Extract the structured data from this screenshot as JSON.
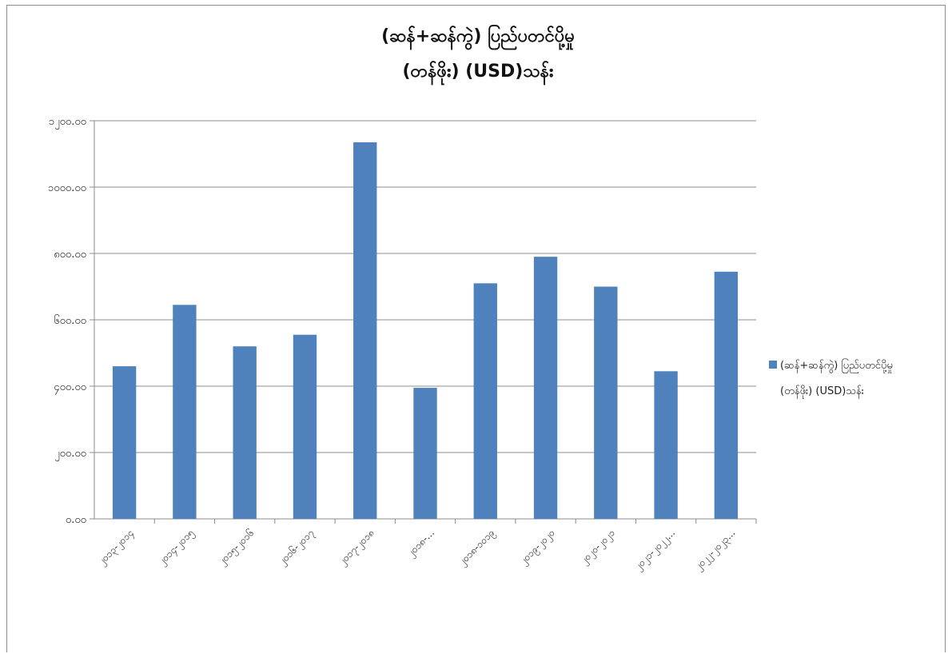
{
  "chart_data": {
    "type": "bar",
    "title_lines": [
      "(ဆန်+ဆန်ကွဲ) ပြည်ပတင်ပို့မှု",
      "(တန်ဖိုး) (USD)သန်း"
    ],
    "categories": [
      "၂၀၁၃-၂၀၁၄",
      "၂၀၁၄-၂၀၁၅",
      "၂၀၁၅-၂၀၁၆",
      "၂၀၁၆-၂၀၁၇",
      "၂၀၁၇-၂၀၁၈",
      "၂၀၁၈-...",
      "၂၀၁၈-၁၀၁၉",
      "၂၀၁၉-၂၀၂၀",
      "၂၀၂၀-၂၀၂၁",
      "၂၀၂၁-၂၀၂၂...",
      "၂၀၂၂-၂၀၂၃..."
    ],
    "series": [
      {
        "name": "(ဆန်+ဆန်ကွဲ) ပြည်ပတင်ပို့မှု (တန်ဖိုး) (USD)သန်း",
        "values": [
          460,
          645,
          520,
          555,
          1135,
          395,
          710,
          790,
          700,
          445,
          745
        ],
        "color": "#4f81bd"
      }
    ],
    "y_tick_labels": [
      "၀.၀၀",
      "၂၀၀.၀၀",
      "၄၀၀.၀၀",
      "၆၀၀.၀၀",
      "၈၀၀.၀၀",
      "၁၀၀၀.၀၀",
      "၁၂၀၀.၀၀"
    ],
    "y_tick_values": [
      0,
      200,
      400,
      600,
      800,
      1000,
      1200
    ],
    "ylim": [
      0,
      1200
    ],
    "grid": true,
    "legend_position": "right",
    "legend_lines": [
      "(ဆန်+ဆန်ကွဲ) ပြည်ပတင်ပို့မှု",
      "(တန်ဖိုး) (USD)သန်း"
    ],
    "xlabel": "",
    "ylabel": ""
  }
}
